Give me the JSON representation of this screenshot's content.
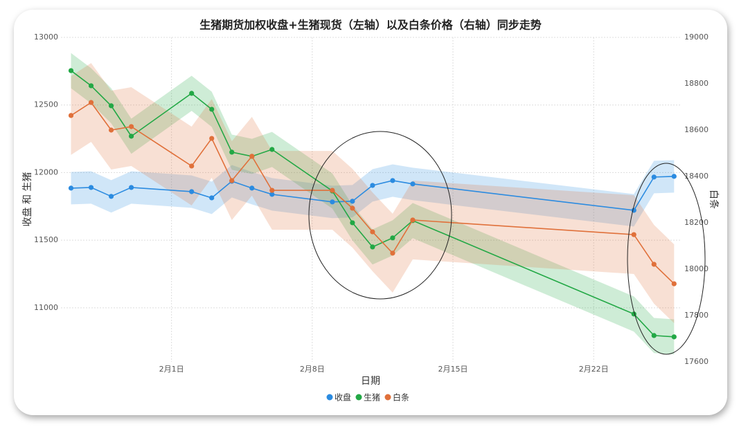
{
  "chart_data": {
    "type": "line",
    "title": "生猪期货加权收盘+生猪现货（左轴）以及白条价格（右轴）同步走势",
    "x_label": "日期",
    "y_label": "收盘 和 生猪",
    "y2_label": "白条",
    "x": [
      27,
      28,
      29,
      30,
      33,
      34,
      35,
      36,
      37,
      40,
      41,
      42,
      43,
      44,
      55,
      56,
      57
    ],
    "xlim": [
      26.5,
      57.3
    ],
    "xticks": [
      {
        "value": 32,
        "label": "2月1日"
      },
      {
        "value": 39,
        "label": "2月8日"
      },
      {
        "value": 46,
        "label": "2月15日"
      },
      {
        "value": 53,
        "label": "2月22日"
      }
    ],
    "ylim": [
      10600,
      13000
    ],
    "yticks": [
      11000,
      11500,
      12000,
      12500,
      13000
    ],
    "y2lim": [
      17600,
      19000
    ],
    "y2ticks": [
      17600,
      17800,
      18000,
      18200,
      18400,
      18600,
      18800,
      19000
    ],
    "grid": true,
    "series": [
      {
        "name": "收盘",
        "color": "#2b8be0",
        "band": 120,
        "values": [
          11885,
          11890,
          11824,
          11890,
          11859,
          11813,
          11936,
          11885,
          11839,
          11783,
          11788,
          11905,
          11941,
          11916,
          11721,
          11967,
          11972
        ]
      },
      {
        "name": "生猪",
        "color": "#22a845",
        "band": 130,
        "values": [
          12754,
          12642,
          12494,
          12269,
          12586,
          12468,
          12151,
          12120,
          12171,
          11864,
          11629,
          11450,
          11517,
          11645,
          10954,
          10795,
          10785
        ]
      },
      {
        "name": "白条",
        "color": "#e0703a",
        "band": 170,
        "axis": "y2",
        "values": [
          18663,
          18719,
          18600,
          18615,
          18445,
          18564,
          18382,
          18487,
          18340,
          18340,
          18263,
          18161,
          18069,
          18212,
          18149,
          18021,
          17937
        ]
      }
    ]
  }
}
